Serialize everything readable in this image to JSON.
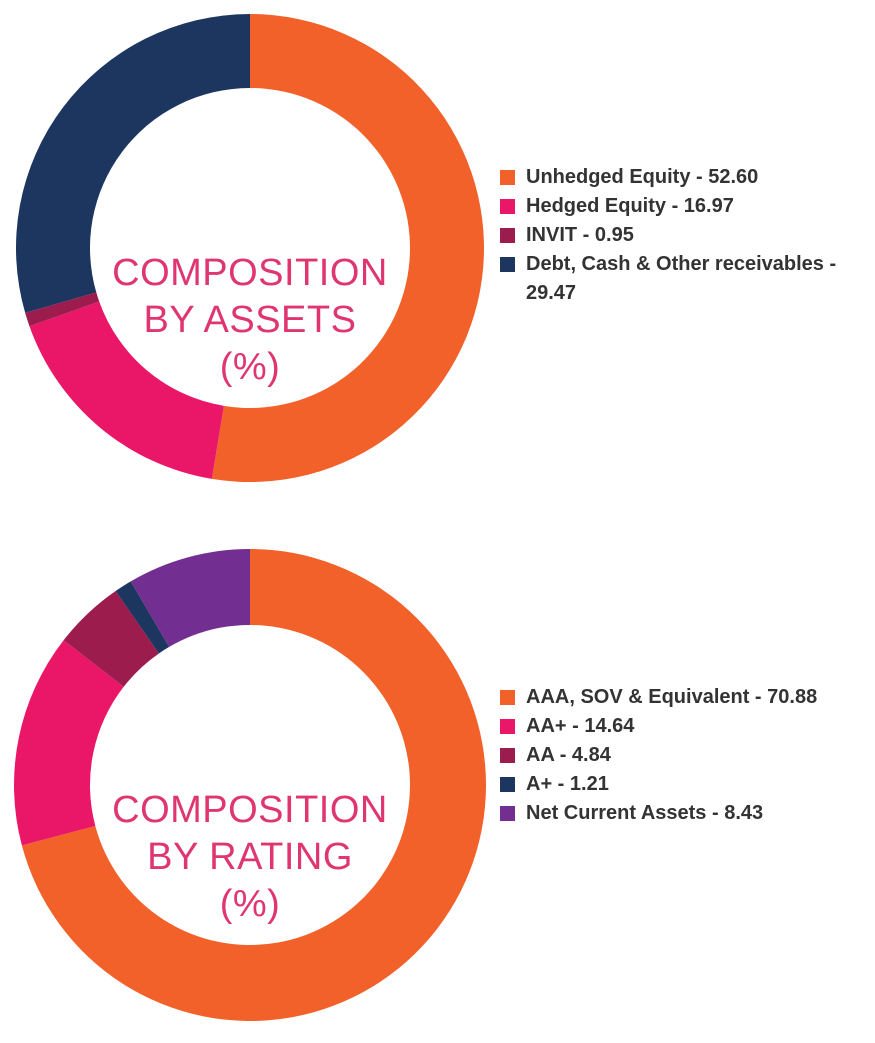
{
  "chart_data": [
    {
      "type": "pie",
      "donut": true,
      "center_label": [
        "COMPOSITION",
        "BY ASSETS",
        "(%)"
      ],
      "legend_position": "right",
      "slices": [
        {
          "label": "Unhedged Equity - 52.60",
          "value": 52.6,
          "color": "#f26129"
        },
        {
          "label": "Hedged Equity - 16.97",
          "value": 16.97,
          "color": "#ea1769"
        },
        {
          "label": "INVIT - 0.95",
          "value": 0.95,
          "color": "#9b1c4d"
        },
        {
          "label": "Debt, Cash & Other receivables - 29.47",
          "value": 29.47,
          "color": "#1c3660"
        }
      ]
    },
    {
      "type": "pie",
      "donut": true,
      "center_label": [
        "COMPOSITION",
        "BY RATING",
        "(%)"
      ],
      "legend_position": "right",
      "slices": [
        {
          "label": "AAA, SOV & Equivalent - 70.88",
          "value": 70.88,
          "color": "#f26129"
        },
        {
          "label": "AA+ - 14.64",
          "value": 14.64,
          "color": "#ea1769"
        },
        {
          "label": "AA - 4.84",
          "value": 4.84,
          "color": "#9b1c4d"
        },
        {
          "label": "A+ - 1.21",
          "value": 1.21,
          "color": "#1c3660"
        },
        {
          "label": "Net Current Assets - 8.43",
          "value": 8.43,
          "color": "#722f91"
        }
      ]
    }
  ]
}
